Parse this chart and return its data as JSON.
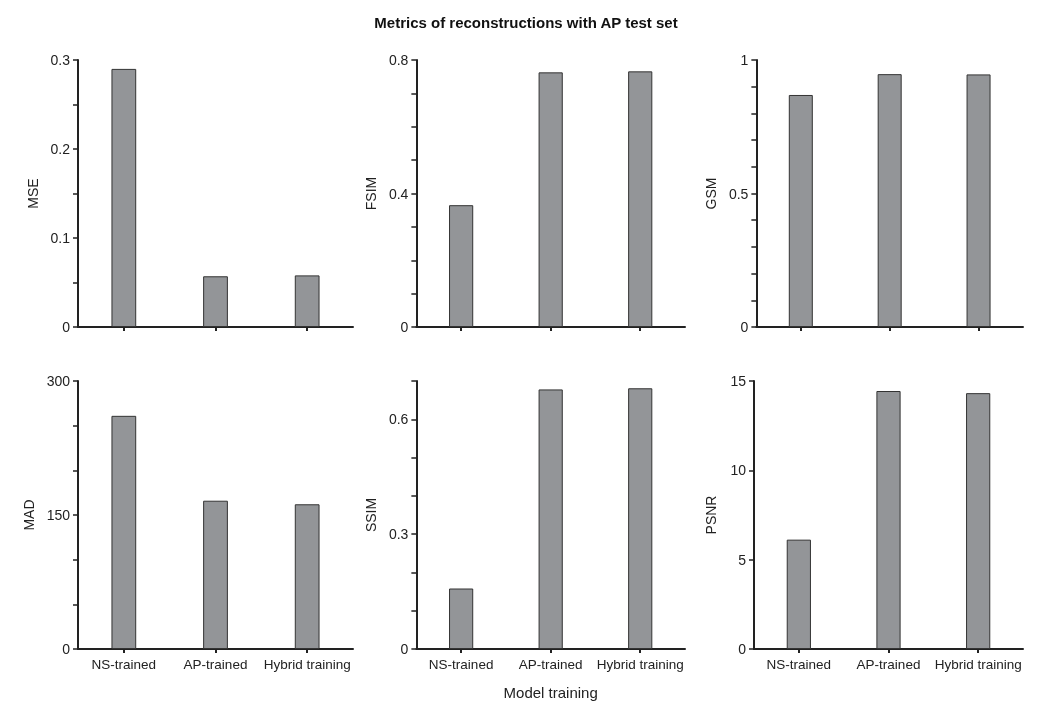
{
  "chart_data": [
    {
      "type": "bar",
      "categories": [
        null,
        null,
        null
      ],
      "ylabel": "MSE",
      "values": [
        0.29,
        0.057,
        0.058
      ],
      "color": "#939598",
      "ylim": [
        0,
        0.3
      ],
      "yticks": [
        0,
        {
          "value": 0.05,
          "label": null
        },
        0.1,
        {
          "value": 0.15,
          "label": null
        },
        0.2,
        {
          "value": 0.25,
          "label": null
        },
        0.3
      ],
      "grid": false,
      "tick_labels": "y"
    },
    {
      "type": "bar",
      "title": "Metrics of reconstructions with AP test set",
      "categories": [
        null,
        null,
        null
      ],
      "ylabel": "FSIM",
      "values": [
        0.365,
        0.763,
        0.766
      ],
      "color": "#939598",
      "ylim": [
        0,
        0.8
      ],
      "yticks": [
        0,
        {
          "value": 0.1,
          "label": null
        },
        {
          "value": 0.2,
          "label": null
        },
        {
          "value": 0.3,
          "label": null
        },
        0.4,
        {
          "value": 0.5,
          "label": null
        },
        {
          "value": 0.6,
          "label": null
        },
        {
          "value": 0.7,
          "label": null
        },
        0.8
      ],
      "grid": false,
      "tick_labels": "y"
    },
    {
      "type": "bar",
      "categories": [
        null,
        null,
        null
      ],
      "ylabel": "GSM",
      "values": [
        0.869,
        0.947,
        0.946
      ],
      "color": "#939598",
      "ylim": [
        0,
        1
      ],
      "yticks": [
        0,
        {
          "value": 0.1,
          "label": null
        },
        {
          "value": 0.2,
          "label": null
        },
        {
          "value": 0.3,
          "label": null
        },
        {
          "value": 0.4,
          "label": null
        },
        0.5,
        {
          "value": 0.6,
          "label": null
        },
        {
          "value": 0.7,
          "label": null
        },
        {
          "value": 0.8,
          "label": null
        },
        {
          "value": 0.9,
          "label": null
        },
        1
      ],
      "grid": false,
      "tick_labels": "y"
    },
    {
      "type": "bar",
      "categories": [
        "NS-trained",
        "AP-trained",
        "Hybrid training"
      ],
      "ylabel": "MAD",
      "values": [
        261,
        166,
        162
      ],
      "color": "#939598",
      "ylim": [
        0,
        300
      ],
      "yticks": [
        0,
        {
          "value": 50,
          "label": null
        },
        {
          "value": 100,
          "label": null
        },
        150,
        {
          "value": 200,
          "label": null
        },
        {
          "value": 250,
          "label": null
        },
        300
      ],
      "grid": false
    },
    {
      "type": "bar",
      "categories": [
        "NS-trained",
        "AP-trained",
        "Hybrid training"
      ],
      "xlabel": "Model training",
      "ylabel": "SSIM",
      "values": [
        0.158,
        0.678,
        0.681
      ],
      "color": "#939598",
      "ylim": [
        0,
        0.7
      ],
      "yticks": [
        0,
        {
          "value": 0.1,
          "label": null
        },
        {
          "value": 0.2,
          "label": null
        },
        0.3,
        {
          "value": 0.4,
          "label": null
        },
        {
          "value": 0.5,
          "label": null
        },
        0.6,
        {
          "value": 0.7,
          "label": null
        }
      ],
      "grid": false
    },
    {
      "type": "bar",
      "categories": [
        "NS-trained",
        "AP-trained",
        "Hybrid training"
      ],
      "ylabel": "PSNR",
      "values": [
        6.12,
        14.44,
        14.32
      ],
      "color": "#939598",
      "ylim": [
        0,
        15
      ],
      "yticks": [
        0,
        5,
        10,
        15
      ],
      "grid": false
    }
  ]
}
